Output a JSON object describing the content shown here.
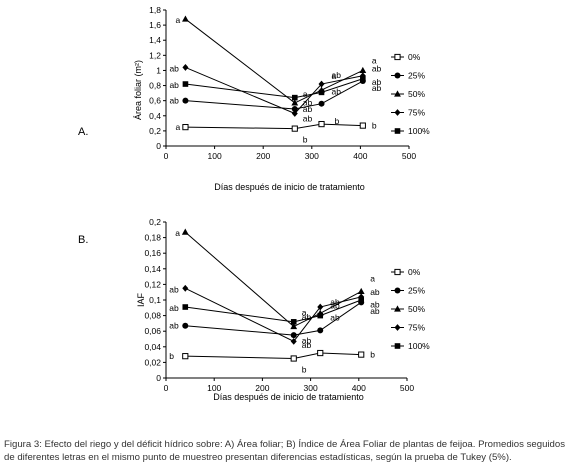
{
  "caption": "Figura 3: Efecto del riego y del déficit hídrico sobre: A) Área foliar; B) Índice de Área Foliar de plantas de feijoa. Promedios seguidos de diferentes letras en el mismo punto de muestreo presentan diferencias estadísticas, según la prueba de Tukey (5%).",
  "chart_data": [
    {
      "panel_label": "A.",
      "type": "line",
      "ylabel": "Área foliar (m²)",
      "xlabel": "Días después de inicio de tratamiento",
      "xlim": [
        0,
        500
      ],
      "ylim": [
        0,
        1.8
      ],
      "x_ticks": [
        0,
        100,
        200,
        300,
        400,
        500
      ],
      "y_ticks": [
        0,
        0.2,
        0.4,
        0.6,
        0.8,
        1,
        1.2,
        1.4,
        1.6,
        1.8
      ],
      "y_tick_labels": [
        "0",
        "0,2",
        "0,4",
        "0,6",
        "0,8",
        "1",
        "1,2",
        "1,4",
        "1,6",
        "1,8"
      ],
      "grid": false,
      "legend": "right",
      "series": [
        {
          "name": "0%",
          "marker": "square-open",
          "x": [
            40,
            265,
            320,
            405
          ],
          "y": [
            0.25,
            0.23,
            0.29,
            0.27
          ],
          "letters": [
            "a",
            "b",
            "b",
            "b"
          ]
        },
        {
          "name": "25%",
          "marker": "circle",
          "x": [
            40,
            265,
            320,
            405
          ],
          "y": [
            0.6,
            0.49,
            0.56,
            0.86
          ],
          "letters": [
            "ab",
            "ab",
            "",
            "ab"
          ]
        },
        {
          "name": "50%",
          "marker": "triangle",
          "x": [
            40,
            265,
            320,
            405
          ],
          "y": [
            1.68,
            0.57,
            0.74,
            1.0
          ],
          "letters": [
            "a",
            "a",
            "ab",
            "a"
          ]
        },
        {
          "name": "75%",
          "marker": "diamond",
          "x": [
            40,
            265,
            320,
            405
          ],
          "y": [
            1.04,
            0.43,
            0.82,
            0.93
          ],
          "letters": [
            "ab",
            "ab",
            "a",
            "ab"
          ]
        },
        {
          "name": "100%",
          "marker": "square",
          "x": [
            40,
            265,
            320,
            405
          ],
          "y": [
            0.82,
            0.64,
            0.71,
            0.89
          ],
          "letters": [
            "ab",
            "ab",
            "ab",
            "ab"
          ]
        }
      ]
    },
    {
      "panel_label": "B.",
      "type": "line",
      "ylabel": "IAF",
      "xlabel": "Días después de inicio de tratamiento",
      "xlim": [
        0,
        500
      ],
      "ylim": [
        0,
        0.2
      ],
      "x_ticks": [
        0,
        100,
        200,
        300,
        400,
        500
      ],
      "y_ticks": [
        0,
        0.02,
        0.04,
        0.06,
        0.08,
        0.1,
        0.12,
        0.14,
        0.16,
        0.18,
        0.2
      ],
      "y_tick_labels": [
        "0",
        "0,02",
        "0,04",
        "0,06",
        "0,08",
        "0,1",
        "0,12",
        "0,14",
        "0,16",
        "0,18",
        "0,2"
      ],
      "grid": false,
      "legend": "right",
      "series": [
        {
          "name": "0%",
          "marker": "square-open",
          "x": [
            40,
            265,
            320,
            405
          ],
          "y": [
            0.028,
            0.025,
            0.032,
            0.03
          ],
          "letters": [
            "b",
            "b",
            "",
            "b"
          ]
        },
        {
          "name": "25%",
          "marker": "circle",
          "x": [
            40,
            265,
            320,
            405
          ],
          "y": [
            0.067,
            0.055,
            0.061,
            0.097
          ],
          "letters": [
            "ab",
            "ab",
            "",
            "ab"
          ]
        },
        {
          "name": "50%",
          "marker": "triangle",
          "x": [
            40,
            265,
            320,
            405
          ],
          "y": [
            0.187,
            0.066,
            0.083,
            0.111
          ],
          "letters": [
            "a",
            "a",
            "ab",
            "a"
          ]
        },
        {
          "name": "75%",
          "marker": "diamond",
          "x": [
            40,
            265,
            320,
            405
          ],
          "y": [
            0.115,
            0.047,
            0.091,
            0.104
          ],
          "letters": [
            "ab",
            "ab",
            "ab",
            "ab"
          ]
        },
        {
          "name": "100%",
          "marker": "square",
          "x": [
            40,
            265,
            320,
            405
          ],
          "y": [
            0.091,
            0.072,
            0.08,
            0.1
          ],
          "letters": [
            "ab",
            "ab",
            "ab",
            "ab"
          ]
        }
      ]
    }
  ]
}
